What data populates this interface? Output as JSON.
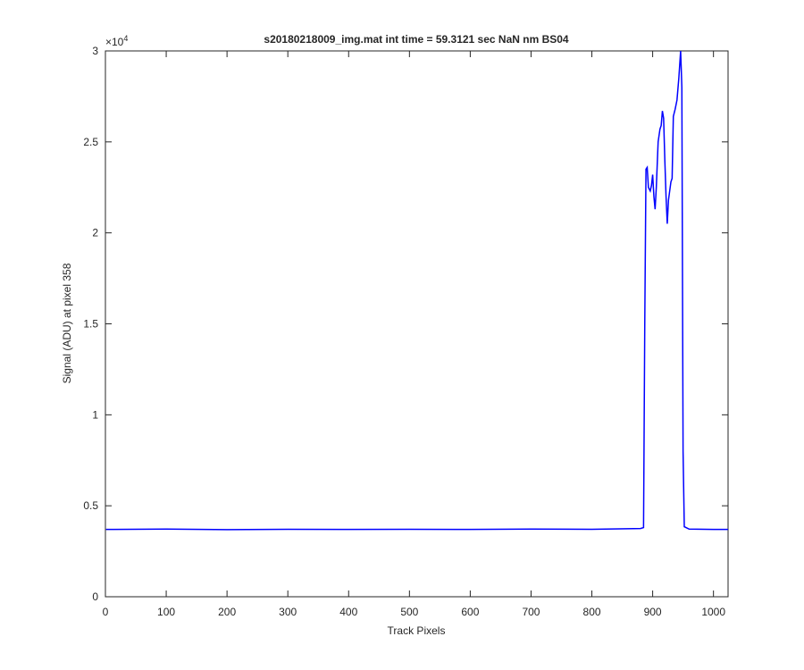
{
  "chart_data": {
    "type": "line",
    "title": "s20180218009_img.mat int time = 59.3121 sec  NaN nm BS04",
    "x_label": "Track Pixels",
    "y_label": "Signal (ADU) at pixel 358",
    "y_exponent": {
      "base": "×10",
      "power": "4"
    },
    "x": [
      1,
      100,
      200,
      300,
      400,
      500,
      600,
      700,
      800,
      880,
      885,
      887,
      889,
      891,
      893,
      896,
      898,
      900,
      902,
      904,
      906,
      909,
      912,
      914,
      916,
      918,
      920,
      922,
      924,
      926,
      928,
      930,
      932,
      934,
      937,
      940,
      943,
      946,
      948,
      950,
      952,
      960,
      1000,
      1024
    ],
    "series": [
      {
        "color": "#0000ff",
        "values": [
          3700,
          3720,
          3690,
          3710,
          3700,
          3710,
          3700,
          3720,
          3710,
          3750,
          3800,
          15000,
          23500,
          23600,
          22500,
          22300,
          22600,
          23200,
          22000,
          21300,
          22500,
          25000,
          25700,
          25900,
          26700,
          26300,
          24000,
          22000,
          20500,
          21800,
          22300,
          22800,
          23000,
          26400,
          26800,
          27300,
          28500,
          30000,
          28000,
          8000,
          3850,
          3720,
          3700,
          3700
        ]
      }
    ],
    "xlim": [
      0,
      1024
    ],
    "ylim": [
      0,
      30000
    ],
    "xticks": [
      0,
      100,
      200,
      300,
      400,
      500,
      600,
      700,
      800,
      900,
      1000
    ],
    "yticks": [
      0,
      {
        "value": 5000,
        "label": "0.5"
      },
      {
        "value": 10000,
        "label": "1"
      },
      {
        "value": 15000,
        "label": "1.5"
      },
      {
        "value": 20000,
        "label": "2"
      },
      {
        "value": 25000,
        "label": "2.5"
      },
      {
        "value": 30000,
        "label": "3"
      }
    ]
  }
}
